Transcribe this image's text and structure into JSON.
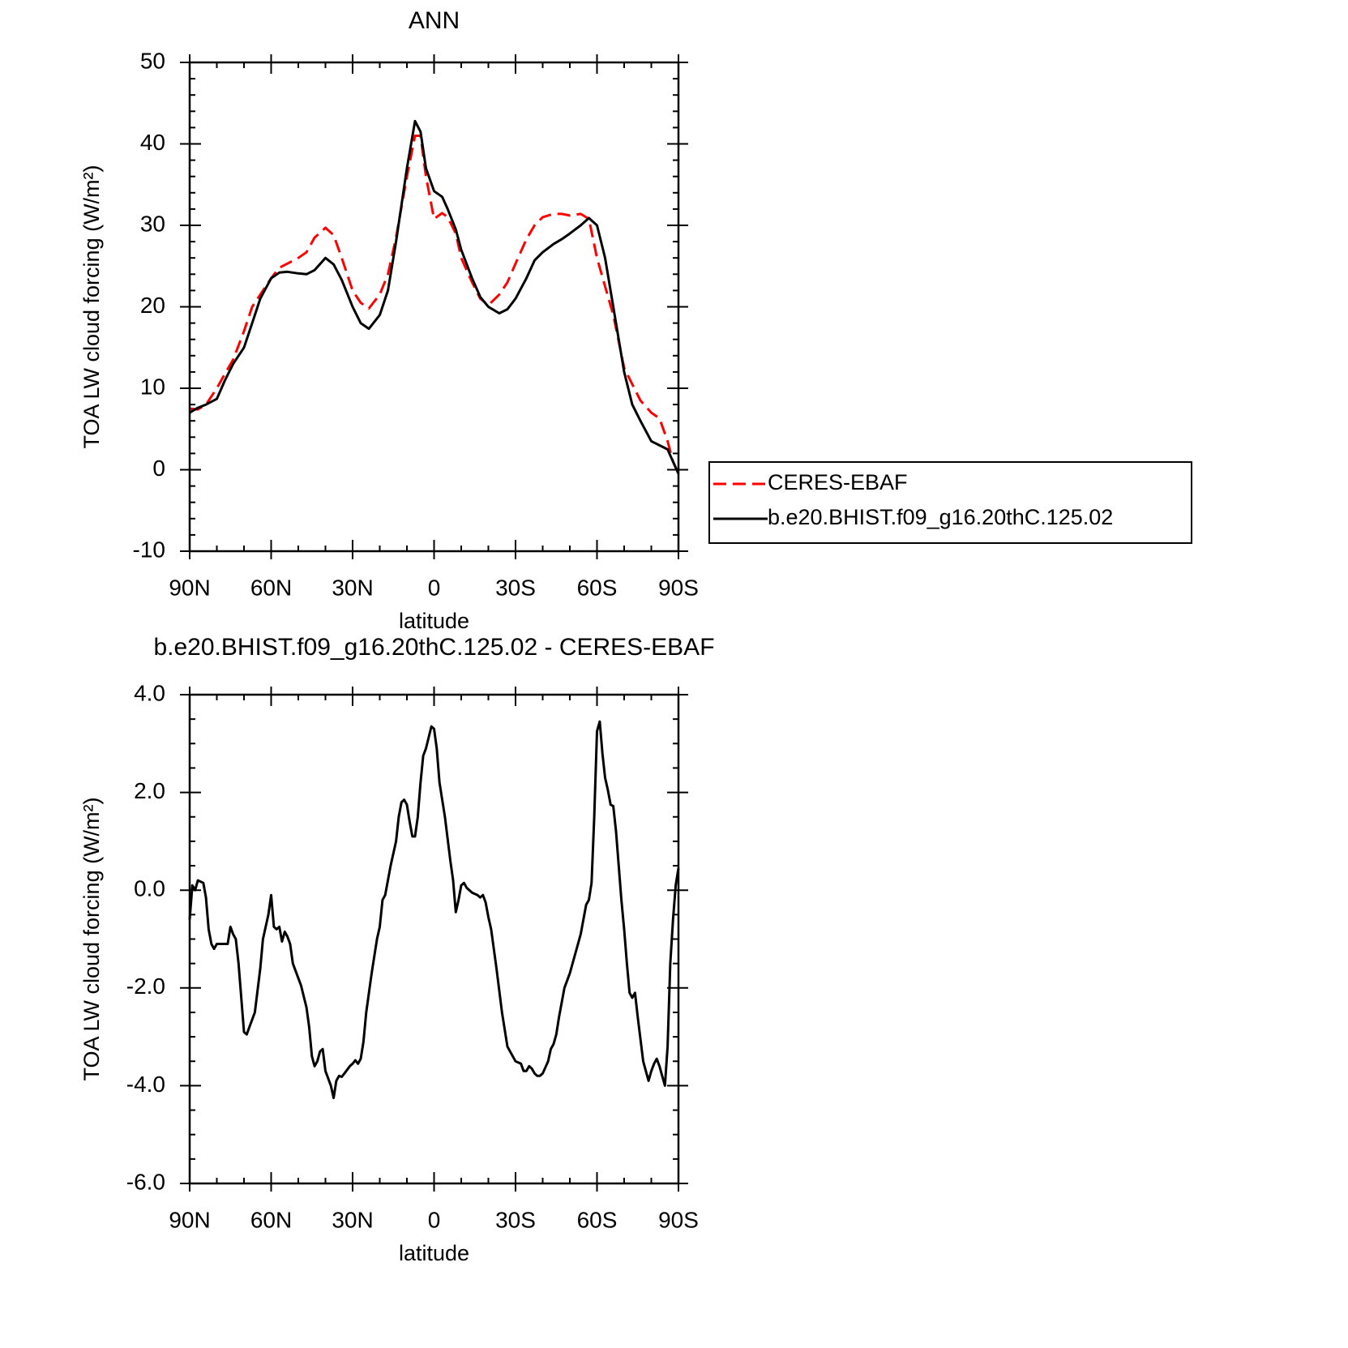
{
  "chart_data": [
    {
      "type": "line",
      "title": "ANN",
      "xlabel": "latitude",
      "ylabel": "TOA LW cloud forcing (W/m²)",
      "x": [
        90,
        87,
        84,
        80,
        77,
        74,
        70,
        67,
        64,
        60,
        57,
        54,
        50,
        47,
        44,
        40,
        37,
        34,
        30,
        27,
        24,
        20,
        17,
        14,
        10,
        7,
        5,
        3,
        0,
        -3,
        -5,
        -8,
        -10,
        -14,
        -17,
        -20,
        -24,
        -27,
        -30,
        -34,
        -37,
        -40,
        -44,
        -47,
        -50,
        -54,
        -57,
        -60,
        -63,
        -66,
        -70,
        -73,
        -76,
        -80,
        -83,
        -86,
        -88,
        -90
      ],
      "series": [
        {
          "name": "CERES-EBAF",
          "color": "#ff0000",
          "line_style": "dashed",
          "values": [
            7.5,
            7.4,
            8,
            10,
            11.8,
            13.5,
            17,
            20,
            21.5,
            23.5,
            24.8,
            25.3,
            26,
            26.7,
            28.5,
            29.7,
            28.8,
            26,
            22,
            20.5,
            19.8,
            21.5,
            24,
            28.5,
            36,
            41,
            41,
            36,
            30.8,
            31.5,
            31,
            29,
            26,
            23,
            21,
            20.2,
            21.5,
            23,
            25.3,
            28.3,
            30,
            31,
            31.4,
            31.4,
            31.2,
            31.4,
            30.8,
            26,
            22.5,
            19,
            12.5,
            10.5,
            8.5,
            7,
            6.3,
            3.5,
            1,
            -0.5
          ]
        },
        {
          "name": "b.e20.BHIST.f09_g16.20thC.125.02",
          "color": "#000000",
          "line_style": "solid",
          "values": [
            7,
            7.6,
            8,
            8.7,
            11,
            13,
            15,
            18,
            21,
            23.5,
            24.2,
            24.3,
            24.1,
            24,
            24.5,
            26,
            25.2,
            23.3,
            20,
            18,
            17.3,
            19,
            22,
            28,
            37,
            42.8,
            41.5,
            37,
            34.2,
            33.5,
            32,
            29.5,
            27,
            23.5,
            21.2,
            20,
            19.2,
            19.7,
            21,
            23.5,
            25.7,
            26.7,
            27.7,
            28.3,
            29,
            30,
            30.9,
            30,
            26,
            20,
            12,
            8,
            6,
            3.5,
            3,
            2.5,
            1,
            -0.5
          ]
        }
      ],
      "xlim": [
        90,
        -90
      ],
      "xticks": [
        {
          "value": 90,
          "label": "90N"
        },
        {
          "value": 60,
          "label": "60N"
        },
        {
          "value": 30,
          "label": "30N"
        },
        0,
        {
          "value": -30,
          "label": "30S"
        },
        {
          "value": -60,
          "label": "60S"
        },
        {
          "value": -90,
          "label": "90S"
        }
      ],
      "ylim": [
        -10,
        50
      ],
      "yticks": [
        -10,
        0,
        10,
        20,
        30,
        40,
        50
      ],
      "legend": "right"
    },
    {
      "type": "line",
      "title": "b.e20.BHIST.f09_g16.20thC.125.02 - CERES-EBAF",
      "xlabel": "latitude",
      "ylabel": "TOA LW cloud forcing (W/m²)",
      "x": [
        90,
        89,
        88,
        87,
        85,
        84,
        83,
        82,
        81,
        80,
        78,
        76,
        75,
        74,
        73,
        72,
        70,
        69,
        68,
        66,
        64,
        63,
        61,
        60,
        59,
        58,
        57,
        56,
        55,
        54,
        53,
        52,
        50,
        49,
        47,
        46,
        45,
        44,
        43,
        42,
        41,
        40,
        38,
        37,
        36,
        35,
        34,
        33,
        31,
        30,
        29,
        28,
        27,
        26,
        25,
        23,
        21,
        20,
        19,
        18,
        16,
        14,
        13,
        12,
        11,
        10,
        9,
        8,
        7,
        6,
        5,
        4,
        3,
        1,
        0,
        -1,
        -2,
        -4,
        -6,
        -7,
        -8,
        -9,
        -10,
        -11,
        -12,
        -14,
        -16,
        -17,
        -18,
        -19,
        -20,
        -21,
        -23,
        -25,
        -27,
        -28,
        -30,
        -32,
        -33,
        -34,
        -35,
        -36,
        -37,
        -38,
        -39,
        -40,
        -42,
        -43,
        -44,
        -45,
        -46,
        -48,
        -50,
        -52,
        -54,
        -56,
        -57,
        -58,
        -59,
        -60,
        -61,
        -62,
        -63,
        -64,
        -65,
        -66,
        -67,
        -68,
        -69,
        -70,
        -71,
        -72,
        -73,
        -74,
        -75,
        -77,
        -78,
        -79,
        -80,
        -81,
        -82,
        -83,
        -84,
        -85,
        -86,
        -87,
        -88,
        -89,
        -90
      ],
      "series": [
        {
          "color": "#000000",
          "line_style": "solid",
          "values": [
            -0.6,
            0.1,
            0,
            0.2,
            0.15,
            -0.15,
            -0.8,
            -1.1,
            -1.2,
            -1.1,
            -1.1,
            -1.1,
            -0.75,
            -0.9,
            -1,
            -1.5,
            -2.9,
            -2.95,
            -2.8,
            -2.5,
            -1.6,
            -1,
            -0.5,
            -0.1,
            -0.75,
            -0.8,
            -0.75,
            -1.05,
            -0.85,
            -0.95,
            -1.1,
            -1.5,
            -1.8,
            -1.95,
            -2.4,
            -2.8,
            -3.4,
            -3.6,
            -3.5,
            -3.3,
            -3.25,
            -3.7,
            -4,
            -4.25,
            -3.9,
            -3.8,
            -3.82,
            -3.75,
            -3.6,
            -3.55,
            -3.48,
            -3.55,
            -3.45,
            -3.1,
            -2.5,
            -1.7,
            -1,
            -0.75,
            -0.2,
            -0.1,
            0.5,
            1,
            1.5,
            1.8,
            1.85,
            1.75,
            1.4,
            1.1,
            1.1,
            1.5,
            2.2,
            2.75,
            2.9,
            3.35,
            3.3,
            2.9,
            2.2,
            1.5,
            0.6,
            0.2,
            -0.45,
            -0.2,
            0.1,
            0.15,
            0.05,
            -0.05,
            -0.1,
            -0.15,
            -0.1,
            -0.25,
            -0.55,
            -0.8,
            -1.6,
            -2.5,
            -3.2,
            -3.3,
            -3.5,
            -3.55,
            -3.7,
            -3.7,
            -3.6,
            -3.65,
            -3.75,
            -3.8,
            -3.8,
            -3.75,
            -3.5,
            -3.25,
            -3.15,
            -2.95,
            -2.6,
            -2,
            -1.7,
            -1.3,
            -0.9,
            -0.3,
            -0.2,
            0.15,
            1.5,
            3.25,
            3.45,
            2.8,
            2.3,
            2.05,
            1.75,
            1.72,
            1.2,
            0.5,
            -0.2,
            -0.8,
            -1.5,
            -2.1,
            -2.2,
            -2.1,
            -2.6,
            -3.5,
            -3.7,
            -3.9,
            -3.7,
            -3.55,
            -3.45,
            -3.6,
            -3.8,
            -4,
            -3.2,
            -1.5,
            -0.6,
            0.1,
            0.45
          ]
        }
      ],
      "xlim": [
        90,
        -90
      ],
      "xticks": [
        {
          "value": 90,
          "label": "90N"
        },
        {
          "value": 60,
          "label": "60N"
        },
        {
          "value": 30,
          "label": "30N"
        },
        0,
        {
          "value": -30,
          "label": "30S"
        },
        {
          "value": -60,
          "label": "60S"
        },
        {
          "value": -90,
          "label": "90S"
        }
      ],
      "ylim": [
        -6,
        4
      ],
      "yticks": [
        {
          "value": -6,
          "label": "-6.0"
        },
        {
          "value": -4,
          "label": "-4.0"
        },
        {
          "value": -2,
          "label": "-2.0"
        },
        {
          "value": 0,
          "label": "0.0"
        },
        {
          "value": 2,
          "label": "2.0"
        },
        {
          "value": 4,
          "label": "4.0"
        }
      ]
    }
  ]
}
